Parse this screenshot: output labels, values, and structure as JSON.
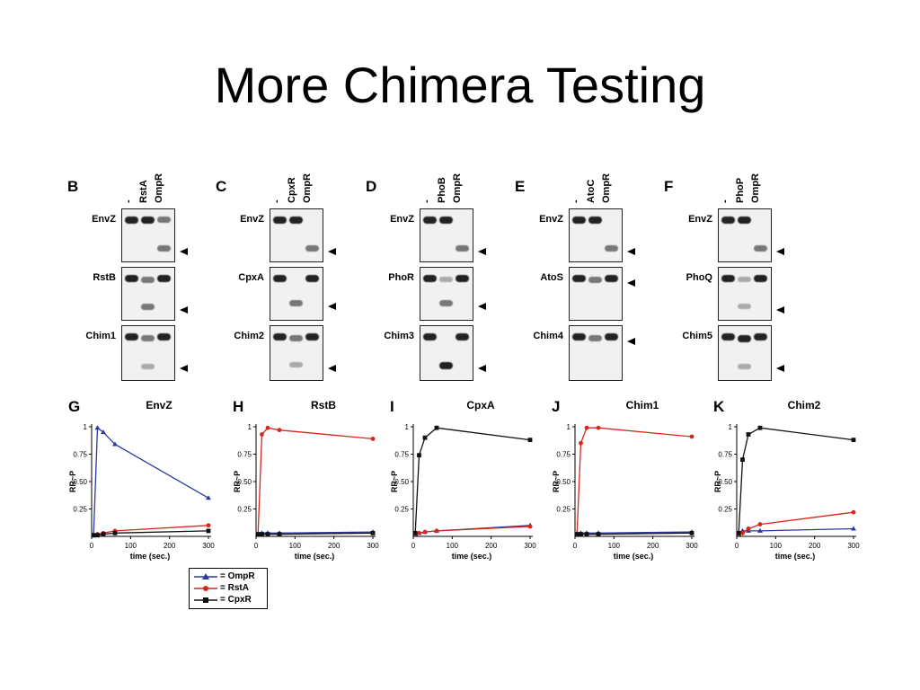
{
  "slide": {
    "title": "More Chimera Testing"
  },
  "blot_panels": [
    {
      "letter": "B",
      "lanes": [
        "-",
        "RstA",
        "OmpR"
      ],
      "rows": [
        "EnvZ",
        "RstB",
        "Chim1"
      ]
    },
    {
      "letter": "C",
      "lanes": [
        "-",
        "CpxR",
        "OmpR"
      ],
      "rows": [
        "EnvZ",
        "CpxA",
        "Chim2"
      ]
    },
    {
      "letter": "D",
      "lanes": [
        "-",
        "PhoB",
        "OmpR"
      ],
      "rows": [
        "EnvZ",
        "PhoR",
        "Chim3"
      ]
    },
    {
      "letter": "E",
      "lanes": [
        "-",
        "AtoC",
        "OmpR"
      ],
      "rows": [
        "EnvZ",
        "AtoS",
        "Chim4"
      ]
    },
    {
      "letter": "F",
      "lanes": [
        "-",
        "PhoP",
        "OmpR"
      ],
      "rows": [
        "EnvZ",
        "PhoQ",
        "Chim5"
      ]
    }
  ],
  "colors": {
    "OmpR": "#2b3a9e",
    "RstA": "#d7261e",
    "CpxR": "#111111"
  },
  "legend": [
    {
      "label": "= OmpR",
      "color": "#2b3a9e",
      "marker": "triangle"
    },
    {
      "label": "= RstA",
      "color": "#d7261e",
      "marker": "circle"
    },
    {
      "label": "= CpxR",
      "color": "#111111",
      "marker": "square"
    }
  ],
  "chart_data": [
    {
      "letter": "G",
      "title": "EnvZ",
      "type": "line",
      "xlabel": "time (sec.)",
      "ylabel": "RR~P",
      "xlim": [
        0,
        300
      ],
      "ylim": [
        0,
        1
      ],
      "xticks": [
        0,
        100,
        200,
        300
      ],
      "yticks": [
        0.25,
        0.5,
        0.75,
        1
      ],
      "ytick_labels": [
        "0.25",
        "0.50",
        "0.75",
        "1"
      ],
      "series": [
        {
          "name": "OmpR",
          "x": [
            5,
            15,
            30,
            60,
            300
          ],
          "y": [
            0.02,
            0.99,
            0.95,
            0.84,
            0.35
          ]
        },
        {
          "name": "RstA",
          "x": [
            5,
            15,
            30,
            60,
            300
          ],
          "y": [
            0.01,
            0.02,
            0.03,
            0.05,
            0.1
          ]
        },
        {
          "name": "CpxR",
          "x": [
            5,
            15,
            30,
            60,
            300
          ],
          "y": [
            0.01,
            0.01,
            0.02,
            0.03,
            0.05
          ]
        }
      ]
    },
    {
      "letter": "H",
      "title": "RstB",
      "type": "line",
      "xlabel": "time (sec.)",
      "ylabel": "RR~P",
      "xlim": [
        0,
        300
      ],
      "ylim": [
        0,
        1
      ],
      "xticks": [
        0,
        100,
        200,
        300
      ],
      "yticks": [
        0.25,
        0.5,
        0.75,
        1
      ],
      "ytick_labels": [
        "0.25",
        "0.50",
        "0.75",
        "1"
      ],
      "series": [
        {
          "name": "OmpR",
          "x": [
            5,
            15,
            30,
            60,
            300
          ],
          "y": [
            0.02,
            0.03,
            0.03,
            0.03,
            0.04
          ]
        },
        {
          "name": "RstA",
          "x": [
            5,
            15,
            30,
            60,
            300
          ],
          "y": [
            0.02,
            0.93,
            0.99,
            0.97,
            0.89
          ]
        },
        {
          "name": "CpxR",
          "x": [
            5,
            15,
            30,
            60,
            300
          ],
          "y": [
            0.02,
            0.02,
            0.02,
            0.02,
            0.03
          ]
        }
      ]
    },
    {
      "letter": "I",
      "title": "CpxA",
      "type": "line",
      "xlabel": "time (sec.)",
      "ylabel": "RR~P",
      "xlim": [
        0,
        300
      ],
      "ylim": [
        0,
        1
      ],
      "xticks": [
        0,
        100,
        200,
        300
      ],
      "yticks": [
        0.25,
        0.5,
        0.75,
        1
      ],
      "ytick_labels": [
        "0.25",
        "0.50",
        "0.75",
        "1"
      ],
      "series": [
        {
          "name": "OmpR",
          "x": [
            5,
            15,
            30,
            60,
            300
          ],
          "y": [
            0.02,
            0.03,
            0.04,
            0.05,
            0.1
          ]
        },
        {
          "name": "RstA",
          "x": [
            5,
            15,
            30,
            60,
            300
          ],
          "y": [
            0.02,
            0.03,
            0.04,
            0.05,
            0.09
          ]
        },
        {
          "name": "CpxR",
          "x": [
            5,
            15,
            30,
            60,
            300
          ],
          "y": [
            0.03,
            0.74,
            0.9,
            0.99,
            0.88
          ]
        }
      ]
    },
    {
      "letter": "J",
      "title": "Chim1",
      "type": "line",
      "xlabel": "time (sec.)",
      "ylabel": "RR~P",
      "xlim": [
        0,
        300
      ],
      "ylim": [
        0,
        1
      ],
      "xticks": [
        0,
        100,
        200,
        300
      ],
      "yticks": [
        0.25,
        0.5,
        0.75,
        1
      ],
      "ytick_labels": [
        "0.25",
        "0.50",
        "0.75",
        "1"
      ],
      "series": [
        {
          "name": "OmpR",
          "x": [
            5,
            15,
            30,
            60,
            300
          ],
          "y": [
            0.02,
            0.03,
            0.03,
            0.03,
            0.04
          ]
        },
        {
          "name": "RstA",
          "x": [
            5,
            15,
            30,
            60,
            300
          ],
          "y": [
            0.02,
            0.85,
            0.99,
            0.99,
            0.91
          ]
        },
        {
          "name": "CpxR",
          "x": [
            5,
            15,
            30,
            60,
            300
          ],
          "y": [
            0.02,
            0.02,
            0.02,
            0.02,
            0.03
          ]
        }
      ]
    },
    {
      "letter": "K",
      "title": "Chim2",
      "type": "line",
      "xlabel": "time (sec.)",
      "ylabel": "RR~P",
      "xlim": [
        0,
        300
      ],
      "ylim": [
        0,
        1
      ],
      "xticks": [
        0,
        100,
        200,
        300
      ],
      "yticks": [
        0.25,
        0.5,
        0.75,
        1
      ],
      "ytick_labels": [
        "0.25",
        "0.50",
        "0.75",
        "1"
      ],
      "series": [
        {
          "name": "OmpR",
          "x": [
            5,
            15,
            30,
            60,
            300
          ],
          "y": [
            0.02,
            0.05,
            0.05,
            0.05,
            0.07
          ]
        },
        {
          "name": "RstA",
          "x": [
            5,
            15,
            30,
            60,
            300
          ],
          "y": [
            0.02,
            0.03,
            0.07,
            0.11,
            0.22
          ]
        },
        {
          "name": "CpxR",
          "x": [
            5,
            15,
            30,
            60,
            300
          ],
          "y": [
            0.03,
            0.7,
            0.93,
            0.99,
            0.88
          ]
        }
      ]
    }
  ]
}
